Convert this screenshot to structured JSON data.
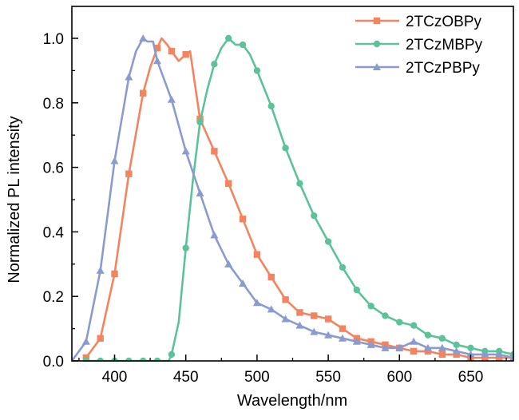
{
  "chart_data": {
    "type": "line",
    "title": "",
    "xlabel": "Wavelength/nm",
    "ylabel": "Normalized PL intensity",
    "xlim": [
      370,
      680
    ],
    "ylim": [
      0.0,
      1.1
    ],
    "xticks": [
      400,
      450,
      500,
      550,
      600,
      650
    ],
    "xtick_labels": [
      "400",
      "450",
      "500",
      "550",
      "600",
      "650"
    ],
    "yticks": [
      0.0,
      0.2,
      0.4,
      0.6,
      0.8,
      1.0
    ],
    "ytick_labels": [
      "0.0",
      "0.2",
      "0.4",
      "0.6",
      "0.8",
      "1.0"
    ],
    "grid": false,
    "legend": {
      "placement": "top-right",
      "entries": [
        "2TCzOBPy",
        "2TCzMBPy",
        "2TCzPBPy"
      ]
    },
    "series": [
      {
        "name": "2TCzOBPy",
        "color": "#F4845F",
        "marker": "square",
        "x": [
          380,
          390,
          400,
          410,
          420,
          425,
          430,
          433,
          437,
          440,
          445,
          450,
          453,
          460,
          470,
          480,
          490,
          500,
          510,
          520,
          530,
          540,
          550,
          560,
          570,
          580,
          590,
          600,
          610,
          620,
          630,
          640,
          650,
          660,
          670,
          680
        ],
        "y": [
          0.01,
          0.07,
          0.27,
          0.58,
          0.83,
          0.91,
          0.97,
          1.0,
          0.98,
          0.96,
          0.93,
          0.95,
          0.96,
          0.75,
          0.65,
          0.55,
          0.44,
          0.33,
          0.26,
          0.19,
          0.15,
          0.14,
          0.13,
          0.1,
          0.07,
          0.06,
          0.05,
          0.04,
          0.03,
          0.03,
          0.02,
          0.02,
          0.01,
          0.01,
          0.01,
          0.01
        ],
        "markers_x": [
          380,
          390,
          400,
          410,
          420,
          430,
          440,
          450,
          460,
          470,
          480,
          490,
          500,
          510,
          520,
          530,
          540,
          550,
          560,
          570,
          580,
          590,
          600,
          610,
          620,
          630,
          640,
          650,
          660,
          670,
          680
        ],
        "markers_y": [
          0.01,
          0.07,
          0.27,
          0.58,
          0.83,
          0.97,
          0.96,
          0.95,
          0.75,
          0.65,
          0.55,
          0.44,
          0.33,
          0.26,
          0.19,
          0.15,
          0.14,
          0.13,
          0.1,
          0.07,
          0.06,
          0.05,
          0.04,
          0.03,
          0.03,
          0.02,
          0.02,
          0.01,
          0.01,
          0.01,
          0.01
        ]
      },
      {
        "name": "2TCzMBPy",
        "color": "#5CC29A",
        "marker": "circle",
        "x": [
          380,
          390,
          400,
          410,
          420,
          430,
          438,
          440,
          445,
          450,
          455,
          460,
          465,
          470,
          475,
          480,
          485,
          490,
          495,
          500,
          510,
          520,
          530,
          540,
          550,
          560,
          570,
          580,
          590,
          600,
          610,
          620,
          630,
          640,
          650,
          660,
          670,
          680
        ],
        "y": [
          0.0,
          0.0,
          0.0,
          0.0,
          0.0,
          0.0,
          0.0,
          0.02,
          0.12,
          0.35,
          0.56,
          0.74,
          0.84,
          0.92,
          0.97,
          1.0,
          0.98,
          0.98,
          0.95,
          0.9,
          0.79,
          0.66,
          0.55,
          0.45,
          0.37,
          0.29,
          0.22,
          0.17,
          0.14,
          0.12,
          0.11,
          0.08,
          0.07,
          0.05,
          0.04,
          0.03,
          0.03,
          0.02
        ],
        "markers_x": [
          380,
          390,
          400,
          410,
          420,
          430,
          440,
          450,
          460,
          470,
          480,
          490,
          500,
          510,
          520,
          530,
          540,
          550,
          560,
          570,
          580,
          590,
          600,
          610,
          620,
          630,
          640,
          650,
          660,
          670,
          680
        ],
        "markers_y": [
          0.0,
          0.0,
          0.0,
          0.0,
          0.0,
          0.0,
          0.02,
          0.35,
          0.74,
          0.92,
          1.0,
          0.98,
          0.9,
          0.79,
          0.66,
          0.55,
          0.45,
          0.37,
          0.29,
          0.22,
          0.17,
          0.14,
          0.12,
          0.11,
          0.08,
          0.07,
          0.05,
          0.04,
          0.03,
          0.03,
          0.02
        ]
      },
      {
        "name": "2TCzPBPy",
        "color": "#8A9BD0",
        "marker": "triangle",
        "x": [
          370,
          380,
          390,
          400,
          410,
          415,
          420,
          423,
          427,
          430,
          440,
          450,
          460,
          470,
          480,
          490,
          500,
          510,
          520,
          530,
          540,
          550,
          560,
          570,
          580,
          590,
          600,
          610,
          620,
          630,
          640,
          650,
          660,
          670,
          680
        ],
        "y": [
          0.0,
          0.06,
          0.28,
          0.62,
          0.88,
          0.96,
          1.0,
          0.99,
          0.99,
          0.93,
          0.81,
          0.65,
          0.52,
          0.39,
          0.3,
          0.24,
          0.18,
          0.16,
          0.13,
          0.11,
          0.09,
          0.08,
          0.07,
          0.06,
          0.05,
          0.04,
          0.04,
          0.06,
          0.04,
          0.04,
          0.03,
          0.02,
          0.02,
          0.02,
          0.01
        ],
        "markers_x": [
          380,
          390,
          400,
          410,
          420,
          430,
          440,
          450,
          460,
          470,
          480,
          490,
          500,
          510,
          520,
          530,
          540,
          550,
          560,
          570,
          580,
          590,
          600,
          610,
          620,
          630,
          640,
          650,
          660,
          670,
          680
        ],
        "markers_y": [
          0.06,
          0.28,
          0.62,
          0.88,
          1.0,
          0.93,
          0.81,
          0.65,
          0.52,
          0.39,
          0.3,
          0.24,
          0.18,
          0.16,
          0.13,
          0.11,
          0.09,
          0.08,
          0.07,
          0.06,
          0.05,
          0.04,
          0.04,
          0.06,
          0.04,
          0.04,
          0.03,
          0.02,
          0.02,
          0.02,
          0.01
        ]
      }
    ]
  }
}
